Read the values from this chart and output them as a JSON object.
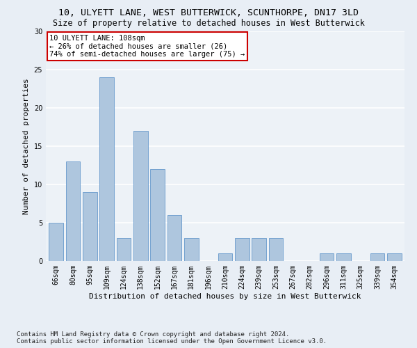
{
  "title1": "10, ULYETT LANE, WEST BUTTERWICK, SCUNTHORPE, DN17 3LD",
  "title2": "Size of property relative to detached houses in West Butterwick",
  "xlabel": "Distribution of detached houses by size in West Butterwick",
  "ylabel": "Number of detached properties",
  "categories": [
    "66sqm",
    "80sqm",
    "95sqm",
    "109sqm",
    "124sqm",
    "138sqm",
    "152sqm",
    "167sqm",
    "181sqm",
    "196sqm",
    "210sqm",
    "224sqm",
    "239sqm",
    "253sqm",
    "267sqm",
    "282sqm",
    "296sqm",
    "311sqm",
    "325sqm",
    "339sqm",
    "354sqm"
  ],
  "values": [
    5,
    13,
    9,
    24,
    3,
    17,
    12,
    6,
    3,
    0,
    1,
    3,
    3,
    3,
    0,
    0,
    1,
    1,
    0,
    1,
    1
  ],
  "bar_color": "#aec6de",
  "bar_edge_color": "#6699cc",
  "annotation_title": "10 ULYETT LANE: 108sqm",
  "annotation_line2": "← 26% of detached houses are smaller (26)",
  "annotation_line3": "74% of semi-detached houses are larger (75) →",
  "annotation_box_color": "#ffffff",
  "annotation_box_edge": "#cc0000",
  "ylim": [
    0,
    30
  ],
  "yticks": [
    0,
    5,
    10,
    15,
    20,
    25,
    30
  ],
  "footer1": "Contains HM Land Registry data © Crown copyright and database right 2024.",
  "footer2": "Contains public sector information licensed under the Open Government Licence v3.0.",
  "bg_color": "#e8eef5",
  "plot_bg_color": "#edf2f7",
  "grid_color": "#ffffff",
  "title1_fontsize": 9.5,
  "title2_fontsize": 8.5,
  "xlabel_fontsize": 8,
  "ylabel_fontsize": 8,
  "tick_fontsize": 7,
  "annotation_fontsize": 7.5,
  "footer_fontsize": 6.5
}
